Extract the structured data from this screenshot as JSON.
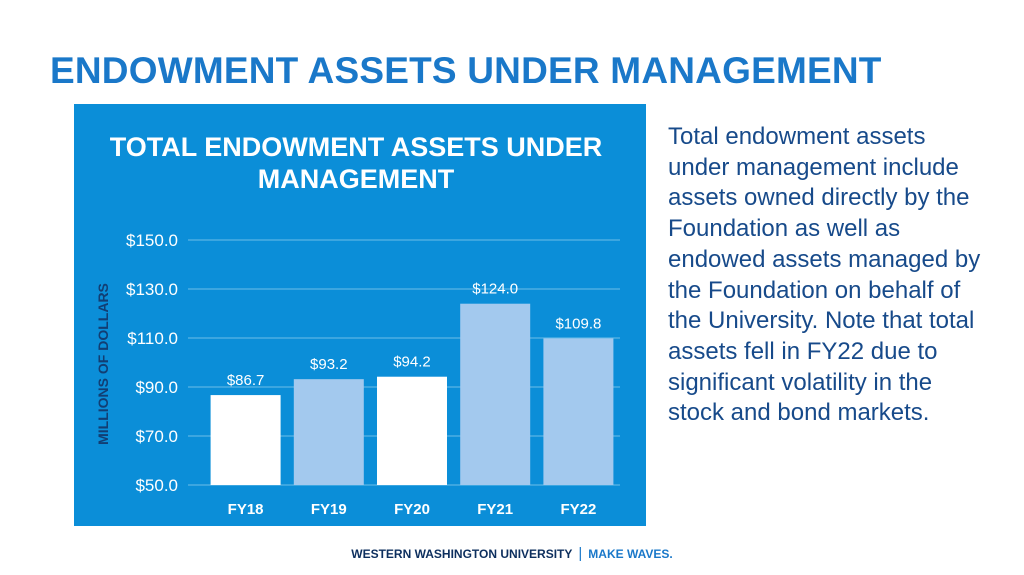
{
  "page": {
    "title": "ENDOWMENT ASSETS UNDER MANAGEMENT",
    "description": "Total endowment assets under management include assets owned directly by the Foundation as well as endowed assets managed by the Foundation on behalf of the University.  Note that total assets fell in FY22 due to significant volatility in the stock and bond markets."
  },
  "footer": {
    "university": "WESTERN WASHINGTON UNIVERSITY",
    "separator": "|",
    "tagline": "MAKE WAVES."
  },
  "colors": {
    "panel_background": "#0b8ed8",
    "bar_white": "#ffffff",
    "bar_light_blue": "#a3c9ee",
    "gridline": "#6cbde9",
    "title_blue": "#1a78c9",
    "text_navy": "#174a8a"
  },
  "chart_data": {
    "type": "bar",
    "title_lines": [
      "TOTAL ENDOWMENT ASSETS UNDER",
      "MANAGEMENT"
    ],
    "ylabel": "MILLIONS OF DOLLARS",
    "xlabel": "",
    "categories": [
      "FY18",
      "FY19",
      "FY20",
      "FY21",
      "FY22"
    ],
    "values": [
      86.7,
      93.2,
      94.2,
      124.0,
      109.8
    ],
    "value_labels": [
      "$86.7",
      "$93.2",
      "$94.2",
      "$124.0",
      "$109.8"
    ],
    "bar_colors": [
      "#ffffff",
      "#a3c9ee",
      "#ffffff",
      "#a3c9ee",
      "#a3c9ee"
    ],
    "ylim": [
      50,
      150
    ],
    "yticks": [
      50,
      70,
      90,
      110,
      130,
      150
    ],
    "ytick_labels": [
      "$50.0",
      "$70.0",
      "$90.0",
      "$110.0",
      "$130.0",
      "$150.0"
    ],
    "grid": true,
    "legend": "none"
  }
}
